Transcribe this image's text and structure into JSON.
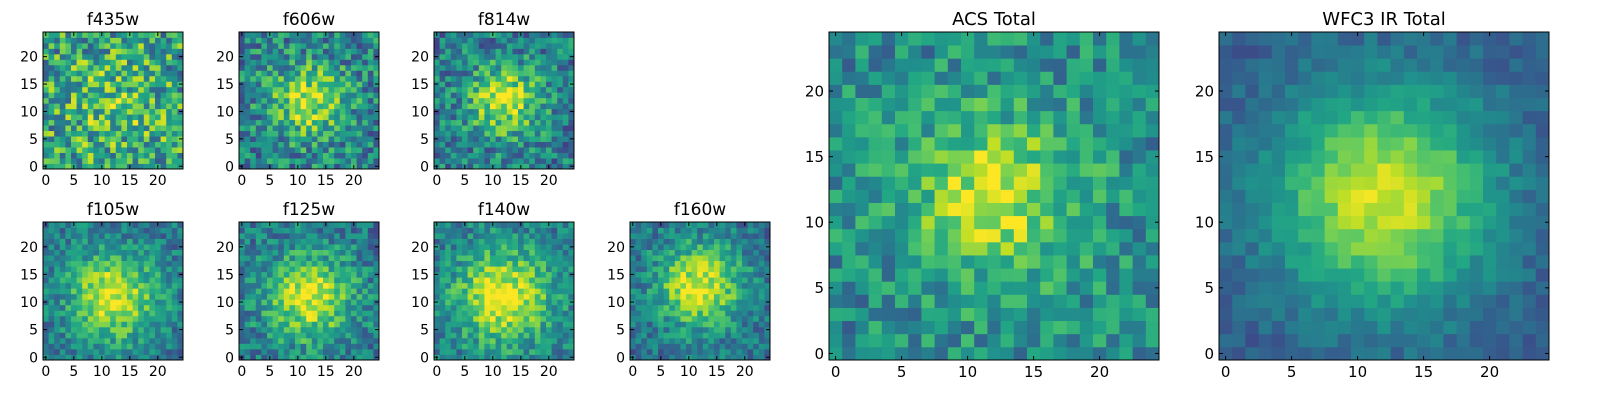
{
  "figure": {
    "background": "#ffffff",
    "colormap": "viridis"
  },
  "chart_data": [
    {
      "type": "heatmap",
      "title": "f435w",
      "grid_size": 25,
      "xlim": [
        0,
        24
      ],
      "ylim": [
        0,
        24
      ],
      "x_ticks": [
        0,
        5,
        10,
        15,
        20
      ],
      "y_ticks": [
        0,
        5,
        10,
        15,
        20
      ],
      "center": [
        12,
        12
      ],
      "sigma": 6,
      "peak": 0.15,
      "base": 0.58,
      "noise": 0.32,
      "seed": 11
    },
    {
      "type": "heatmap",
      "title": "f606w",
      "grid_size": 25,
      "xlim": [
        0,
        24
      ],
      "ylim": [
        0,
        24
      ],
      "x_ticks": [
        0,
        5,
        10,
        15,
        20
      ],
      "y_ticks": [
        0,
        5,
        10,
        15,
        20
      ],
      "center": [
        12,
        12
      ],
      "sigma": 4.5,
      "peak": 0.45,
      "base": 0.45,
      "noise": 0.26,
      "seed": 23
    },
    {
      "type": "heatmap",
      "title": "f814w",
      "grid_size": 25,
      "xlim": [
        0,
        24
      ],
      "ylim": [
        0,
        24
      ],
      "x_ticks": [
        0,
        5,
        10,
        15,
        20
      ],
      "y_ticks": [
        0,
        5,
        10,
        15,
        20
      ],
      "center": [
        12,
        12
      ],
      "sigma": 4.5,
      "peak": 0.5,
      "base": 0.42,
      "noise": 0.24,
      "seed": 37
    },
    {
      "type": "heatmap",
      "title": "f105w",
      "grid_size": 25,
      "xlim": [
        0,
        24
      ],
      "ylim": [
        0,
        24
      ],
      "x_ticks": [
        0,
        5,
        10,
        15,
        20
      ],
      "y_ticks": [
        0,
        5,
        10,
        15,
        20
      ],
      "center": [
        12,
        11
      ],
      "sigma": 5.5,
      "peak": 0.55,
      "base": 0.4,
      "noise": 0.18,
      "seed": 41
    },
    {
      "type": "heatmap",
      "title": "f125w",
      "grid_size": 25,
      "xlim": [
        0,
        24
      ],
      "ylim": [
        0,
        24
      ],
      "x_ticks": [
        0,
        5,
        10,
        15,
        20
      ],
      "y_ticks": [
        0,
        5,
        10,
        15,
        20
      ],
      "center": [
        12,
        11
      ],
      "sigma": 5.5,
      "peak": 0.55,
      "base": 0.4,
      "noise": 0.2,
      "seed": 53
    },
    {
      "type": "heatmap",
      "title": "f140w",
      "grid_size": 25,
      "xlim": [
        0,
        24
      ],
      "ylim": [
        0,
        24
      ],
      "x_ticks": [
        0,
        5,
        10,
        15,
        20
      ],
      "y_ticks": [
        0,
        5,
        10,
        15,
        20
      ],
      "center": [
        12,
        11
      ],
      "sigma": 6,
      "peak": 0.55,
      "base": 0.42,
      "noise": 0.18,
      "seed": 67
    },
    {
      "type": "heatmap",
      "title": "f160w",
      "grid_size": 25,
      "xlim": [
        0,
        24
      ],
      "ylim": [
        0,
        24
      ],
      "x_ticks": [
        0,
        5,
        10,
        15,
        20
      ],
      "y_ticks": [
        0,
        5,
        10,
        15,
        20
      ],
      "center": [
        12,
        13
      ],
      "sigma": 5.5,
      "peak": 0.55,
      "base": 0.38,
      "noise": 0.18,
      "seed": 71
    },
    {
      "type": "heatmap",
      "title": "ACS Total",
      "grid_size": 25,
      "xlim": [
        0,
        24
      ],
      "ylim": [
        0,
        24
      ],
      "x_ticks": [
        0,
        5,
        10,
        15,
        20
      ],
      "y_ticks": [
        0,
        5,
        10,
        15,
        20
      ],
      "center": [
        12,
        12
      ],
      "sigma": 4.5,
      "peak": 0.45,
      "base": 0.48,
      "noise": 0.2,
      "seed": 83
    },
    {
      "type": "heatmap",
      "title": "WFC3 IR Total",
      "grid_size": 25,
      "xlim": [
        0,
        24
      ],
      "ylim": [
        0,
        24
      ],
      "x_ticks": [
        0,
        5,
        10,
        15,
        20
      ],
      "y_ticks": [
        0,
        5,
        10,
        15,
        20
      ],
      "center": [
        12,
        12
      ],
      "sigma": 6,
      "peak": 0.65,
      "base": 0.28,
      "noise": 0.08,
      "seed": 97
    }
  ]
}
